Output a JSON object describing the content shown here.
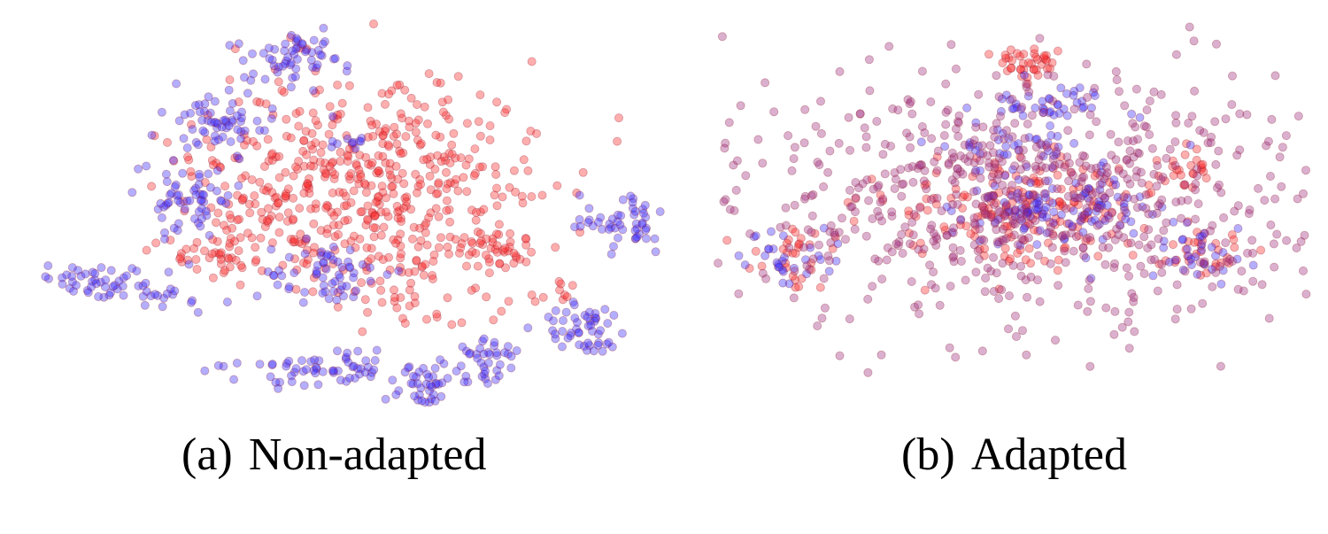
{
  "colors": {
    "source": "#ff2a2a",
    "target": "#3a2bff",
    "edge": "#8a1a2a"
  },
  "chart_data": [
    {
      "type": "scatter",
      "title": "",
      "caption_label": "(a)",
      "caption_text": "Non-adapted",
      "xlabel": "",
      "ylabel": "",
      "grid": false,
      "legend": "none",
      "series": [
        {
          "color": "#ff2a2a",
          "clusters": [
            {
              "cx": 0.53,
              "cy": 0.5,
              "sx": 0.14,
              "sy": 0.18,
              "n": 520
            },
            {
              "cx": 0.37,
              "cy": 0.63,
              "sx": 0.05,
              "sy": 0.05,
              "n": 40
            },
            {
              "cx": 0.27,
              "cy": 0.73,
              "sx": 0.03,
              "sy": 0.03,
              "n": 30
            },
            {
              "cx": 0.73,
              "cy": 0.7,
              "sx": 0.03,
              "sy": 0.03,
              "n": 28
            },
            {
              "cx": 0.6,
              "cy": 0.87,
              "sx": 0.05,
              "sy": 0.04,
              "n": 22
            },
            {
              "cx": 0.83,
              "cy": 0.83,
              "sx": 0.02,
              "sy": 0.02,
              "n": 8
            }
          ]
        },
        {
          "color": "#3a2bff",
          "clusters": [
            {
              "cx": 0.1,
              "cy": 0.8,
              "sx": 0.085,
              "sy": 0.03,
              "n": 70,
              "rot": 0.3
            },
            {
              "cx": 0.24,
              "cy": 0.55,
              "sx": 0.04,
              "sy": 0.05,
              "n": 60
            },
            {
              "cx": 0.28,
              "cy": 0.3,
              "sx": 0.04,
              "sy": 0.05,
              "n": 60
            },
            {
              "cx": 0.4,
              "cy": 0.12,
              "sx": 0.04,
              "sy": 0.05,
              "n": 60
            },
            {
              "cx": 0.46,
              "cy": 0.78,
              "sx": 0.05,
              "sy": 0.05,
              "n": 60
            },
            {
              "cx": 0.45,
              "cy": 1.07,
              "sx": 0.06,
              "sy": 0.03,
              "n": 60
            },
            {
              "cx": 0.61,
              "cy": 1.12,
              "sx": 0.03,
              "sy": 0.04,
              "n": 40
            },
            {
              "cx": 0.71,
              "cy": 1.05,
              "sx": 0.03,
              "sy": 0.04,
              "n": 40
            },
            {
              "cx": 0.87,
              "cy": 0.95,
              "sx": 0.035,
              "sy": 0.04,
              "n": 50
            },
            {
              "cx": 0.93,
              "cy": 0.63,
              "sx": 0.035,
              "sy": 0.04,
              "n": 50
            },
            {
              "cx": 0.5,
              "cy": 0.37,
              "sx": 0.02,
              "sy": 0.02,
              "n": 10
            }
          ]
        }
      ]
    },
    {
      "type": "scatter",
      "title": "",
      "caption_label": "(b)",
      "caption_text": "Adapted",
      "xlabel": "",
      "ylabel": "",
      "grid": false,
      "legend": "none",
      "series": [
        {
          "color": "#ff2a2a",
          "clusters": [
            {
              "cx": 0.5,
              "cy": 0.58,
              "sx": 0.12,
              "sy": 0.08,
              "n": 180
            },
            {
              "cx": 0.52,
              "cy": 0.12,
              "sx": 0.03,
              "sy": 0.03,
              "n": 40
            },
            {
              "cx": 0.78,
              "cy": 0.45,
              "sx": 0.03,
              "sy": 0.03,
              "n": 25
            },
            {
              "cx": 0.12,
              "cy": 0.72,
              "sx": 0.04,
              "sy": 0.05,
              "n": 30
            },
            {
              "cx": 0.8,
              "cy": 0.7,
              "sx": 0.04,
              "sy": 0.04,
              "n": 30
            }
          ]
        },
        {
          "color": "#3a2bff",
          "clusters": [
            {
              "cx": 0.57,
              "cy": 0.58,
              "sx": 0.08,
              "sy": 0.06,
              "n": 120
            },
            {
              "cx": 0.57,
              "cy": 0.25,
              "sx": 0.05,
              "sy": 0.03,
              "n": 40
            },
            {
              "cx": 0.5,
              "cy": 0.38,
              "sx": 0.06,
              "sy": 0.04,
              "n": 40
            },
            {
              "cx": 0.13,
              "cy": 0.72,
              "sx": 0.04,
              "sy": 0.05,
              "n": 30
            },
            {
              "cx": 0.8,
              "cy": 0.72,
              "sx": 0.04,
              "sy": 0.04,
              "n": 30
            }
          ]
        },
        {
          "color": "#a03080",
          "clusters": [
            {
              "cx": 0.5,
              "cy": 0.55,
              "sx": 0.26,
              "sy": 0.2,
              "n": 700
            }
          ]
        }
      ]
    }
  ]
}
